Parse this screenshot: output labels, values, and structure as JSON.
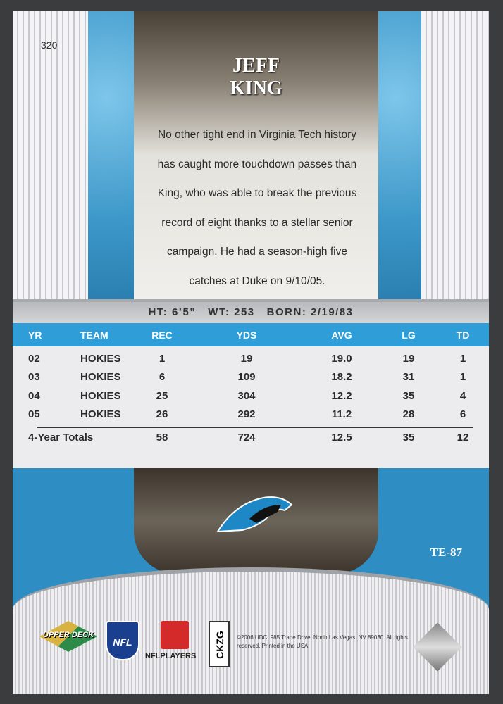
{
  "card": {
    "number": "320",
    "first_name": "JEFF",
    "last_name": "KING",
    "code": "TE-87",
    "bio": "No other tight end in Virginia Tech history has caught more touchdown passes than King, who was able to break the previous record of eight thanks to a stellar senior campaign. He had a season-high five catches at Duke on 9/10/05."
  },
  "vitals": "HT: 6’5”   WT: 253   BORN: 2/19/83",
  "stats": {
    "headers": [
      "YR",
      "TEAM",
      "REC",
      "YDS",
      "AVG",
      "LG",
      "TD"
    ],
    "rows": [
      [
        "02",
        "HOKIES",
        "1",
        "19",
        "19.0",
        "19",
        "1"
      ],
      [
        "03",
        "HOKIES",
        "6",
        "109",
        "18.2",
        "31",
        "1"
      ],
      [
        "04",
        "HOKIES",
        "25",
        "304",
        "12.2",
        "35",
        "4"
      ],
      [
        "05",
        "HOKIES",
        "26",
        "292",
        "11.2",
        "28",
        "6"
      ]
    ],
    "totals": [
      "4-Year Totals",
      "58",
      "724",
      "12.5",
      "35",
      "12"
    ]
  },
  "footer": {
    "ud_logo": "UPPER DECK",
    "nfl_logo": "NFL",
    "nflplayers": "NFLPLAYERS",
    "serial": "CKZG",
    "copyright": "©2006 UDC. 985 Trade Drive, North Las Vegas, NV 89030. All rights reserved. Printed in the USA."
  },
  "colors": {
    "accent_blue": "#2f9ed8",
    "panel_blue": "#3d98c9"
  }
}
